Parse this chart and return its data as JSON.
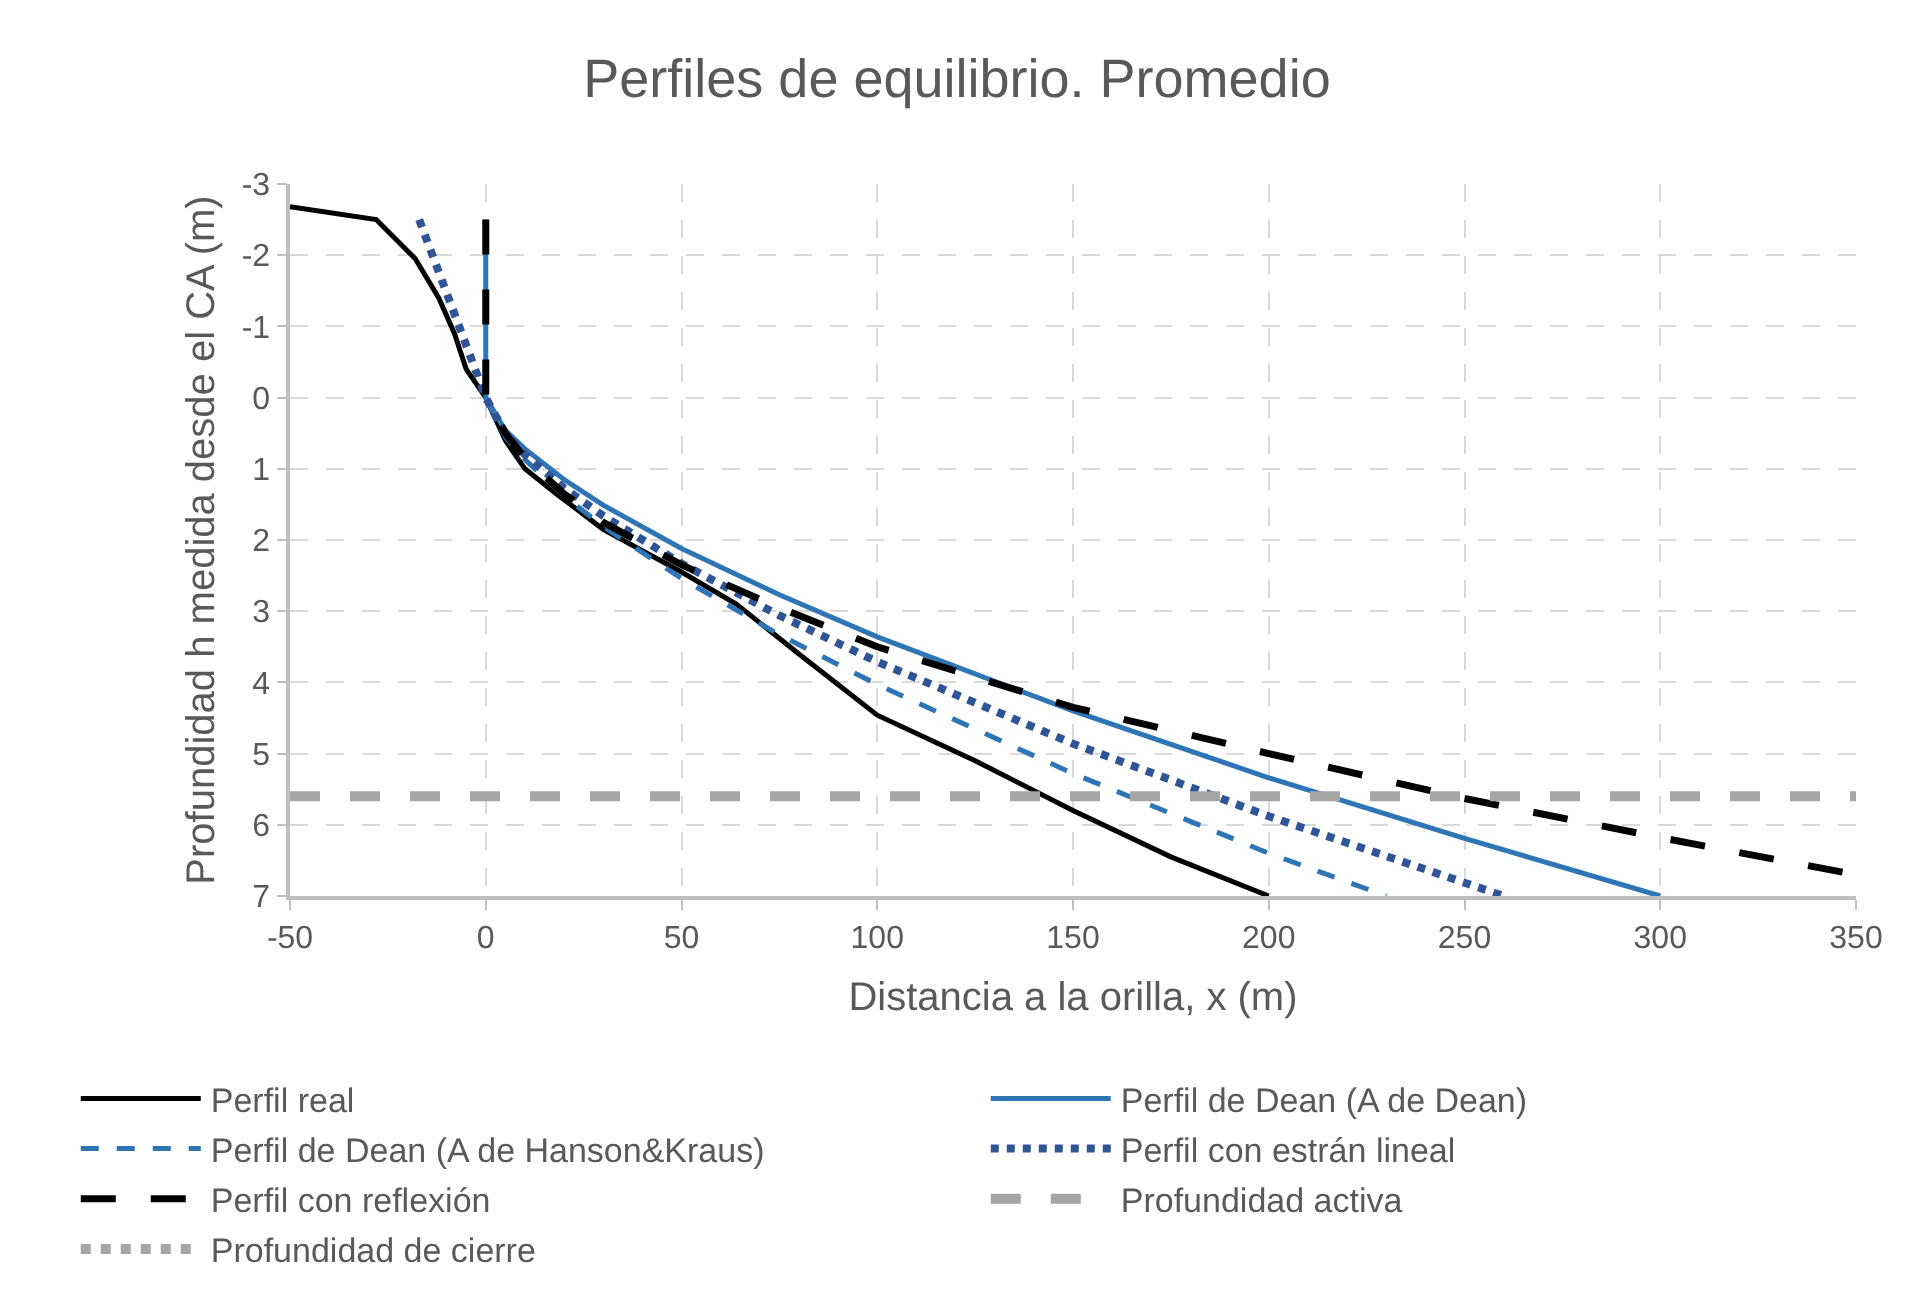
{
  "chart_data": {
    "type": "line",
    "title": "Perfiles de equilibrio. Promedio",
    "xlabel": "Distancia a la orilla, x (m)",
    "ylabel": "Profundidad h medida desde el CA (m)",
    "xlim": [
      -50,
      350
    ],
    "xticks": [
      -50,
      0,
      50,
      100,
      150,
      200,
      250,
      300,
      350
    ],
    "ylim": [
      7,
      -3
    ],
    "yticks": [
      -3,
      -2,
      -1,
      0,
      1,
      2,
      3,
      4,
      5,
      6,
      7
    ],
    "grid": true,
    "legend": "bottom",
    "series": [
      {
        "name": "Perfil real",
        "color": "#000000",
        "line_style": "solid",
        "x": [
          -50,
          -28,
          -18,
          -12,
          -8,
          -5,
          0,
          5,
          10,
          18,
          30,
          50,
          64,
          80,
          100,
          125,
          150,
          175,
          200
        ],
        "values": [
          -2.68,
          -2.5,
          -1.95,
          -1.4,
          -0.9,
          -0.4,
          0,
          0.6,
          1.0,
          1.35,
          1.85,
          2.45,
          2.9,
          3.6,
          4.46,
          5.1,
          5.8,
          6.45,
          7.0
        ]
      },
      {
        "name": "Perfil de Dean (A de Dean)",
        "color": "#2e75b6",
        "line_style": "solid",
        "x": [
          0,
          0,
          5,
          10,
          20,
          30,
          50,
          75,
          100,
          150,
          200,
          250,
          300
        ],
        "values": [
          -2.5,
          0,
          0.46,
          0.72,
          1.15,
          1.51,
          2.12,
          2.77,
          3.36,
          4.4,
          5.34,
          6.19,
          7.0
        ]
      },
      {
        "name": "Perfil de Dean (A de Hanson&Kraus)",
        "color": "#2e75b6",
        "line_style": "dashed",
        "x": [
          0,
          5,
          10,
          20,
          30,
          50,
          75,
          100,
          150,
          200,
          230
        ],
        "values": [
          0,
          0.55,
          0.87,
          1.38,
          1.81,
          2.54,
          3.33,
          4.03,
          5.28,
          6.4,
          7.0
        ]
      },
      {
        "name": "Perfil con estrán lineal",
        "color": "#2f5597",
        "line_style": "dotted",
        "x": [
          -17,
          0,
          5,
          10,
          20,
          30,
          50,
          75,
          100,
          150,
          200,
          260
        ],
        "values": [
          -2.5,
          0,
          0.5,
          0.8,
          1.27,
          1.66,
          2.33,
          3.06,
          3.71,
          4.86,
          5.88,
          7.0
        ]
      },
      {
        "name": "Perfil con reflexión",
        "color": "#000000",
        "line_style": "longdash",
        "x": [
          0,
          0,
          5,
          10,
          20,
          30,
          50,
          75,
          100,
          150,
          200,
          250,
          300,
          350
        ],
        "values": [
          -2.5,
          0,
          0.5,
          0.85,
          1.35,
          1.75,
          2.35,
          2.95,
          3.5,
          4.35,
          5.0,
          5.63,
          6.18,
          6.7
        ]
      },
      {
        "name": "Profundidad activa",
        "color": "#a5a5a5",
        "line_style": "dashed",
        "x": [
          -50,
          350
        ],
        "values": [
          5.6,
          5.6
        ]
      },
      {
        "name": "Profundidad de cierre",
        "color": "#a5a5a5",
        "line_style": "dotted"
      }
    ]
  }
}
